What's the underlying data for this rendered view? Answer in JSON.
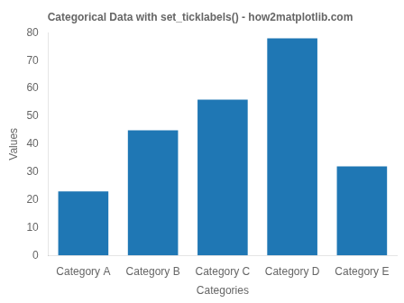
{
  "chart_data": {
    "type": "bar",
    "title": "Categorical Data with set_ticklabels() - how2matplotlib.com",
    "xlabel": "Categories",
    "ylabel": "Values",
    "categories": [
      "Category A",
      "Category B",
      "Category C",
      "Category D",
      "Category E"
    ],
    "values": [
      23,
      45,
      56,
      78,
      32
    ],
    "color": "#1f77b4",
    "ylim": [
      0,
      80
    ],
    "yticks": [
      0,
      10,
      20,
      30,
      40,
      50,
      60,
      70,
      80
    ],
    "grid": false
  }
}
